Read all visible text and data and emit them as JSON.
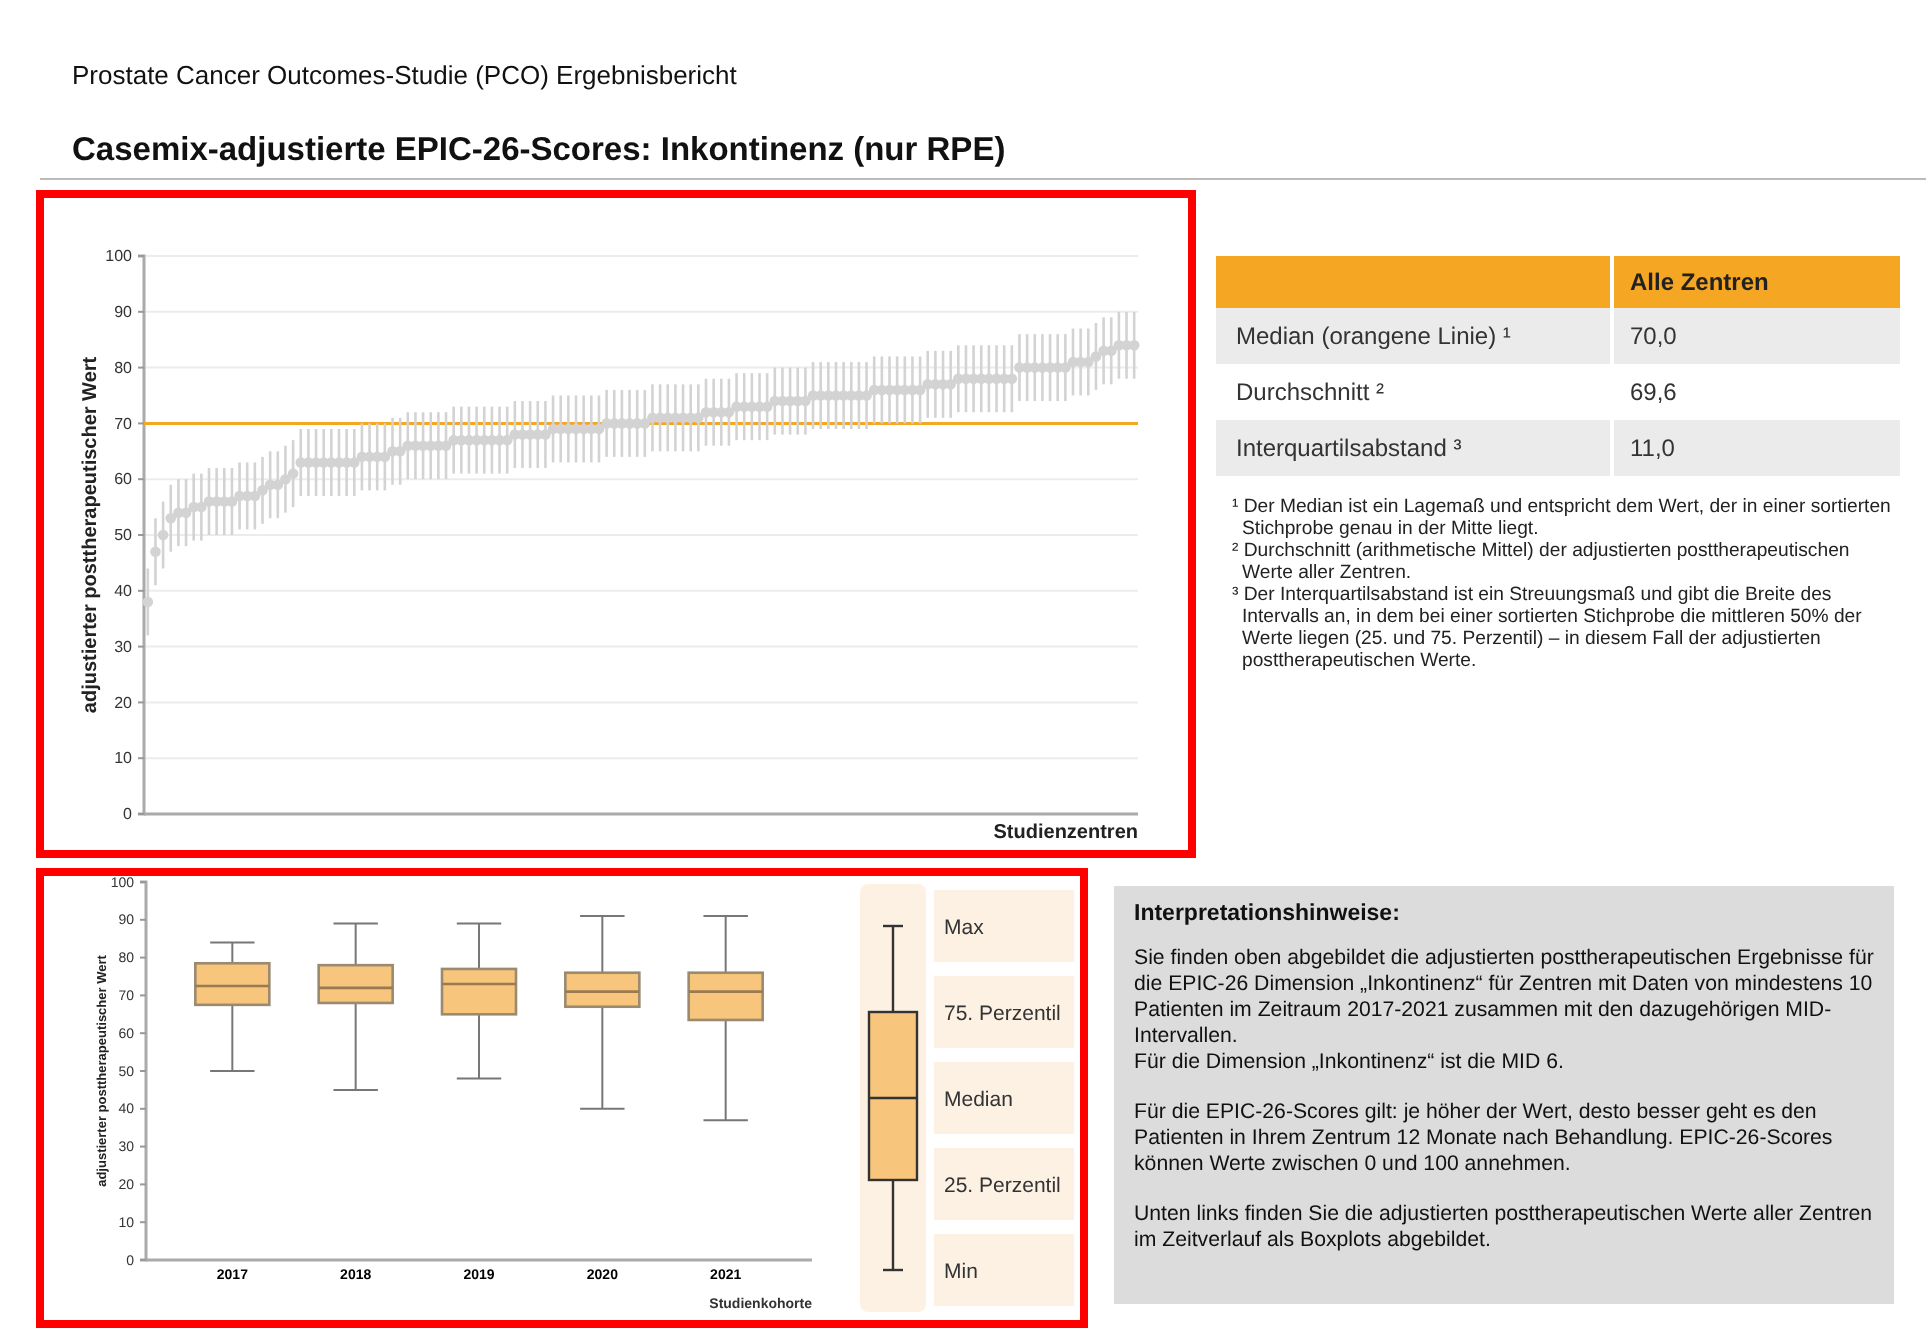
{
  "chart_data": [
    {
      "type": "scatter",
      "subtitle": "Prostate Cancer Outcomes-Studie (PCO) Ergebnisbericht",
      "title": "Casemix-adjustierte EPIC-26-Scores: Inkontinenz (nur RPE)",
      "xlabel": "Studienzentren",
      "ylabel": "adjustierter posttherapeutischer Wert",
      "categories": [
        null,
        null,
        null,
        null,
        null,
        null,
        null,
        null,
        null,
        null,
        null,
        null,
        null,
        null,
        null,
        null,
        null,
        null,
        null,
        null,
        null,
        null,
        null,
        null,
        null,
        null,
        null,
        null,
        null,
        null,
        null,
        null,
        null,
        null,
        null,
        null,
        null,
        null,
        null,
        null,
        null,
        null,
        null,
        null,
        null,
        null,
        null,
        null,
        null,
        null,
        null,
        null,
        null,
        null,
        null,
        null,
        null,
        null,
        null,
        null,
        null,
        null,
        null,
        null,
        null,
        null,
        null,
        null,
        null,
        null,
        null,
        null,
        null,
        null,
        null,
        null,
        null,
        null,
        null,
        null,
        null,
        null,
        null,
        null,
        null,
        null,
        null,
        null,
        null,
        null,
        null,
        null,
        null,
        null,
        null,
        null,
        null,
        null,
        null,
        null,
        null,
        null,
        null,
        null,
        null,
        null,
        null,
        null,
        null,
        null,
        null,
        null,
        null,
        null,
        null,
        null,
        null,
        null,
        null,
        null,
        null,
        null,
        null,
        null,
        null,
        null,
        null,
        null,
        null,
        null
      ],
      "series": [
        {
          "color": "#d3d3d3",
          "values": [
            38,
            47,
            50,
            53,
            54,
            54,
            55,
            55,
            56,
            56,
            56,
            56,
            57,
            57,
            57,
            58,
            59,
            59,
            60,
            61,
            63,
            63,
            63,
            63,
            63,
            63,
            63,
            63,
            64,
            64,
            64,
            64,
            65,
            65,
            66,
            66,
            66,
            66,
            66,
            66,
            67,
            67,
            67,
            67,
            67,
            67,
            67,
            67,
            68,
            68,
            68,
            68,
            68,
            69,
            69,
            69,
            69,
            69,
            69,
            69,
            70,
            70,
            70,
            70,
            70,
            70,
            71,
            71,
            71,
            71,
            71,
            71,
            71,
            72,
            72,
            72,
            72,
            73,
            73,
            73,
            73,
            73,
            74,
            74,
            74,
            74,
            74,
            75,
            75,
            75,
            75,
            75,
            75,
            75,
            75,
            76,
            76,
            76,
            76,
            76,
            76,
            76,
            77,
            77,
            77,
            77,
            78,
            78,
            78,
            78,
            78,
            78,
            78,
            78,
            80,
            80,
            80,
            80,
            80,
            80,
            80,
            81,
            81,
            81,
            82,
            83,
            83,
            84,
            84,
            84
          ],
          "errors": [
            6,
            6,
            6,
            6,
            6,
            6,
            6,
            6,
            6,
            6,
            6,
            6,
            6,
            6,
            6,
            6,
            6,
            6,
            6,
            6,
            6,
            6,
            6,
            6,
            6,
            6,
            6,
            6,
            6,
            6,
            6,
            6,
            6,
            6,
            6,
            6,
            6,
            6,
            6,
            6,
            6,
            6,
            6,
            6,
            6,
            6,
            6,
            6,
            6,
            6,
            6,
            6,
            6,
            6,
            6,
            6,
            6,
            6,
            6,
            6,
            6,
            6,
            6,
            6,
            6,
            6,
            6,
            6,
            6,
            6,
            6,
            6,
            6,
            6,
            6,
            6,
            6,
            6,
            6,
            6,
            6,
            6,
            6,
            6,
            6,
            6,
            6,
            6,
            6,
            6,
            6,
            6,
            6,
            6,
            6,
            6,
            6,
            6,
            6,
            6,
            6,
            6,
            6,
            6,
            6,
            6,
            6,
            6,
            6,
            6,
            6,
            6,
            6,
            6,
            6,
            6,
            6,
            6,
            6,
            6,
            6,
            6,
            6,
            6,
            6,
            6,
            6,
            6,
            6,
            6
          ]
        }
      ],
      "ylim": [
        0,
        100
      ],
      "yticks": [
        0,
        10,
        20,
        30,
        40,
        50,
        60,
        70,
        80,
        90,
        100
      ],
      "grid": "y",
      "marker": "circle",
      "ref_lines": [
        {
          "axis": "y",
          "value": 70,
          "color": "#f5a623"
        }
      ]
    },
    {
      "type": "box",
      "xlabel": "Studienkohorte",
      "ylabel": "adjustierter posttherapeutischer Wert",
      "categories": [
        "2017",
        "2018",
        "2019",
        "2020",
        "2021"
      ],
      "color": "#f7c57c",
      "boxes": [
        {
          "low": 50,
          "q1": 67.5,
          "median": 72.5,
          "q3": 78.5,
          "high": 84
        },
        {
          "low": 45,
          "q1": 68,
          "median": 72,
          "q3": 78,
          "high": 89
        },
        {
          "low": 48,
          "q1": 65,
          "median": 73,
          "q3": 77,
          "high": 89
        },
        {
          "low": 40,
          "q1": 67,
          "median": 71,
          "q3": 76,
          "high": 91
        },
        {
          "low": 37,
          "q1": 63.5,
          "median": 71,
          "q3": 76,
          "high": 91
        }
      ],
      "ylim": [
        0,
        100
      ],
      "yticks": [
        0,
        10,
        20,
        30,
        40,
        50,
        60,
        70,
        80,
        90,
        100
      ],
      "annotations": [
        "Max",
        "75. Perzentil",
        "Median",
        "25. Perzentil",
        "Min"
      ]
    },
    {
      "type": "other",
      "categories": [
        "Median (orangene Linie) ¹",
        "Durchschnitt ²",
        "Interquartilsabstand ³"
      ],
      "legend_title": "Alle Zentren",
      "annotations": [
        "70,0",
        "69,6",
        "11,0",
        "¹ Der Median ist ein Lagemaß und entspricht dem Wert, der in einer sortierten Stichprobe genau in der Mitte liegt.",
        "² Durchschnitt (arithmetische Mittel) der adjustierten posttherapeutischen Werte aller Zentren.",
        "³ Der Interquartilsabstand ist ein Streuungsmaß und gibt die Breite des Intervalls an, in dem bei einer sortierten Stichprobe die mittleren 50% der Werte liegen (25. und 75. Perzentil) – in diesem Fall der adjustierten posttherapeutischen Werte."
      ]
    },
    {
      "type": "other",
      "title": "Interpretationshinweise:",
      "annotations": [
        "Sie finden oben abgebildet die adjustierten posttherapeutischen Ergebnisse für die EPIC-26 Dimension „Inkontinenz“ für Zentren mit Daten von mindestens 10 Patienten im Zeitraum 2017-2021 zusammen mit den dazugehörigen MID-Intervallen.\nFür die Dimension „Inkontinenz“ ist die MID 6.",
        "Für die EPIC-26-Scores gilt: je höher der Wert, desto besser geht es den Patienten in Ihrem Zentrum 12 Monate nach Behandlung. EPIC-26-Scores können Werte zwischen 0 und 100 annehmen.",
        "Unten links finden Sie die adjustierten posttherapeutischen Werte aller Zentren im Zeitverlauf als Boxplots abgebildet."
      ]
    }
  ]
}
